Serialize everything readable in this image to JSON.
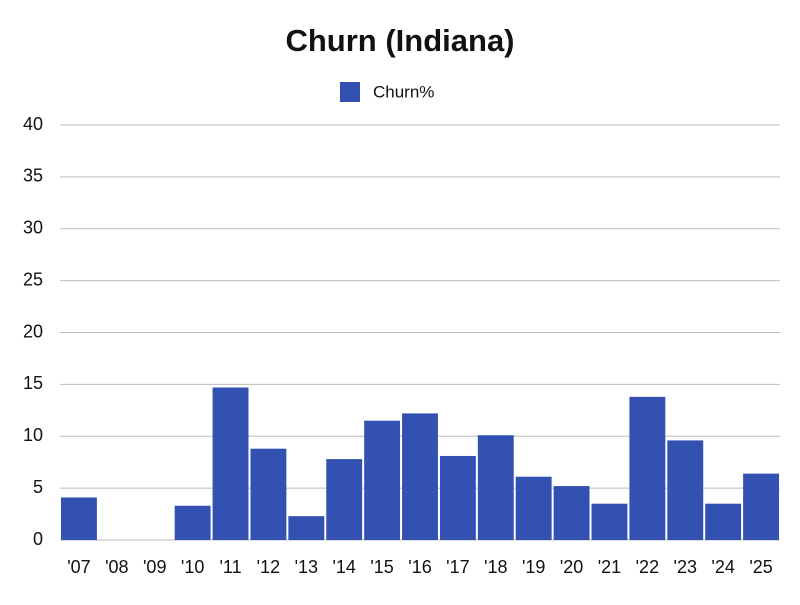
{
  "chart_data": {
    "type": "bar",
    "title": "Churn (Indiana)",
    "categories": [
      "'07",
      "'08",
      "'09",
      "'10",
      "'11",
      "'12",
      "'13",
      "'14",
      "'15",
      "'16",
      "'17",
      "'18",
      "'19",
      "'20",
      "'21",
      "'22",
      "'23",
      "'24",
      "'25"
    ],
    "series": [
      {
        "name": "Churn%",
        "color": "#3351b1",
        "values": [
          4.1,
          0,
          0,
          3.3,
          14.7,
          8.8,
          2.3,
          7.8,
          11.5,
          12.2,
          8.1,
          10.1,
          6.1,
          5.2,
          3.5,
          13.8,
          9.6,
          3.5,
          6.4
        ]
      }
    ],
    "ylim": [
      0,
      40
    ],
    "yticks": [
      0,
      5,
      10,
      15,
      20,
      25,
      30,
      35,
      40
    ],
    "grid": true,
    "legend": "top"
  }
}
